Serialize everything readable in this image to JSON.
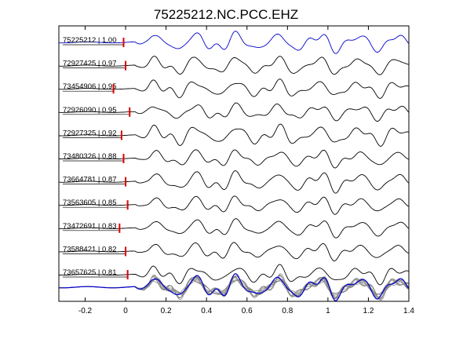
{
  "chart_data": {
    "type": "line",
    "title": "75225212.NC.PCC.EHZ",
    "xlabel": "",
    "ylabel": "",
    "xlim": [
      -0.33,
      1.4
    ],
    "x_ticks": [
      -0.2,
      0,
      0.2,
      0.4,
      0.6,
      0.8,
      1,
      1.2,
      1.4
    ],
    "x_tick_labels": [
      "-0.2",
      "0",
      "0.2",
      "0.4",
      "0.6",
      "0.8",
      "1",
      "1.2",
      "1.4"
    ],
    "grid": false,
    "master_color": "#0000cc",
    "trace_color": "#000000",
    "stack_color": "#888888",
    "pick_color": "#dd0000",
    "series": [
      {
        "name": "75225212 | 1.00",
        "pick_time": -0.01
      },
      {
        "name": "72927425 | 0.97",
        "pick_time": 0.0
      },
      {
        "name": "73454906 | 0.95",
        "pick_time": -0.06
      },
      {
        "name": "72926090 | 0.95",
        "pick_time": 0.02
      },
      {
        "name": "72927325 | 0.92",
        "pick_time": -0.02
      },
      {
        "name": "73480326 | 0.88",
        "pick_time": -0.01
      },
      {
        "name": "73664781 | 0.87",
        "pick_time": 0.0
      },
      {
        "name": "73563605 | 0.85",
        "pick_time": 0.01
      },
      {
        "name": "73472691 | 0.83",
        "pick_time": -0.03
      },
      {
        "name": "73588421 | 0.82",
        "pick_time": 0.0
      },
      {
        "name": "73657625 | 0.81",
        "pick_time": 0.01
      }
    ]
  }
}
